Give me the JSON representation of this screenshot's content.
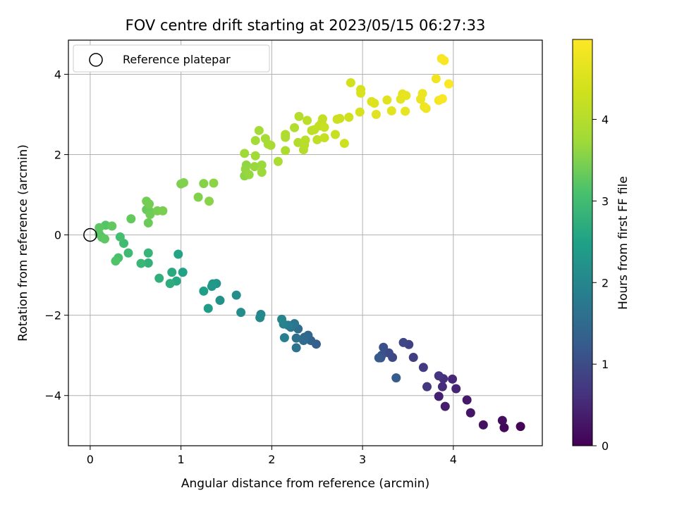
{
  "chart_data": {
    "type": "scatter",
    "title": "FOV centre drift starting at 2023/05/15 06:27:33",
    "xlabel": "Angular distance from reference (arcmin)",
    "ylabel": "Rotation from reference (arcmin)",
    "xlim": [
      -0.24,
      4.98
    ],
    "ylim": [
      -5.25,
      4.85
    ],
    "xticks": [
      0,
      1,
      2,
      3,
      4
    ],
    "yticks": [
      -4,
      -2,
      0,
      2,
      4
    ],
    "xtick_labels": [
      "0",
      "1",
      "2",
      "3",
      "4"
    ],
    "ytick_labels": [
      "−4",
      "−2",
      "0",
      "2",
      "4"
    ],
    "grid": true,
    "legend": {
      "placement": "top-left",
      "label": "Reference platepar",
      "marker": "open-circle"
    },
    "reference_point": {
      "x": 0,
      "y": 0
    },
    "colorbar": {
      "label": "Hours from first FF file",
      "colormap": "viridis",
      "range": [
        0,
        4.98
      ],
      "ticks": [
        0,
        1,
        2,
        3,
        4
      ],
      "tick_labels": [
        "0",
        "1",
        "2",
        "3",
        "4"
      ]
    },
    "points": [
      {
        "x": 4.74,
        "y": -4.77,
        "h": 0.05
      },
      {
        "x": 4.56,
        "y": -4.8,
        "h": 0.1
      },
      {
        "x": 4.54,
        "y": -4.62,
        "h": 0.15
      },
      {
        "x": 4.33,
        "y": -4.73,
        "h": 0.2
      },
      {
        "x": 4.19,
        "y": -4.43,
        "h": 0.25
      },
      {
        "x": 4.15,
        "y": -4.11,
        "h": 0.3
      },
      {
        "x": 3.91,
        "y": -4.27,
        "h": 0.35
      },
      {
        "x": 3.84,
        "y": -4.02,
        "h": 0.4
      },
      {
        "x": 4.03,
        "y": -3.83,
        "h": 0.45
      },
      {
        "x": 3.99,
        "y": -3.59,
        "h": 0.5
      },
      {
        "x": 3.88,
        "y": -3.78,
        "h": 0.55
      },
      {
        "x": 3.89,
        "y": -3.58,
        "h": 0.6
      },
      {
        "x": 3.84,
        "y": -3.51,
        "h": 0.65
      },
      {
        "x": 3.71,
        "y": -3.78,
        "h": 0.7
      },
      {
        "x": 3.67,
        "y": -3.3,
        "h": 0.75
      },
      {
        "x": 3.56,
        "y": -3.05,
        "h": 0.8
      },
      {
        "x": 3.51,
        "y": -2.73,
        "h": 0.85
      },
      {
        "x": 3.45,
        "y": -2.68,
        "h": 0.9
      },
      {
        "x": 3.33,
        "y": -3.05,
        "h": 0.95
      },
      {
        "x": 3.29,
        "y": -2.94,
        "h": 1.0
      },
      {
        "x": 3.23,
        "y": -2.8,
        "h": 1.05
      },
      {
        "x": 3.21,
        "y": -3.0,
        "h": 1.1
      },
      {
        "x": 3.2,
        "y": -3.06,
        "h": 1.15
      },
      {
        "x": 3.18,
        "y": -3.06,
        "h": 1.2
      },
      {
        "x": 3.37,
        "y": -3.56,
        "h": 1.25
      },
      {
        "x": 2.49,
        "y": -2.72,
        "h": 1.3
      },
      {
        "x": 2.43,
        "y": -2.63,
        "h": 1.35
      },
      {
        "x": 2.4,
        "y": -2.5,
        "h": 1.4
      },
      {
        "x": 2.36,
        "y": -2.55,
        "h": 1.45
      },
      {
        "x": 2.35,
        "y": -2.63,
        "h": 1.5
      },
      {
        "x": 2.29,
        "y": -2.34,
        "h": 1.55
      },
      {
        "x": 2.27,
        "y": -2.57,
        "h": 1.6
      },
      {
        "x": 2.27,
        "y": -2.81,
        "h": 1.65
      },
      {
        "x": 2.25,
        "y": -2.21,
        "h": 1.7
      },
      {
        "x": 2.21,
        "y": -2.3,
        "h": 1.75
      },
      {
        "x": 2.18,
        "y": -2.25,
        "h": 1.8
      },
      {
        "x": 2.14,
        "y": -2.56,
        "h": 1.85
      },
      {
        "x": 2.13,
        "y": -2.22,
        "h": 1.9
      },
      {
        "x": 2.11,
        "y": -2.1,
        "h": 1.95
      },
      {
        "x": 1.88,
        "y": -1.98,
        "h": 2.0
      },
      {
        "x": 1.87,
        "y": -2.06,
        "h": 2.05
      },
      {
        "x": 1.66,
        "y": -1.93,
        "h": 2.1
      },
      {
        "x": 1.61,
        "y": -1.5,
        "h": 2.15
      },
      {
        "x": 1.43,
        "y": -1.63,
        "h": 2.2
      },
      {
        "x": 1.39,
        "y": -1.21,
        "h": 2.25
      },
      {
        "x": 1.35,
        "y": -1.22,
        "h": 2.3
      },
      {
        "x": 1.34,
        "y": -1.28,
        "h": 2.35
      },
      {
        "x": 1.3,
        "y": -1.83,
        "h": 2.4
      },
      {
        "x": 1.25,
        "y": -1.4,
        "h": 2.45
      },
      {
        "x": 1.02,
        "y": -0.93,
        "h": 2.5
      },
      {
        "x": 0.97,
        "y": -0.48,
        "h": 2.55
      },
      {
        "x": 0.95,
        "y": -1.15,
        "h": 2.6
      },
      {
        "x": 0.9,
        "y": -0.93,
        "h": 2.65
      },
      {
        "x": 0.88,
        "y": -1.21,
        "h": 2.7
      },
      {
        "x": 0.76,
        "y": -1.08,
        "h": 2.75
      },
      {
        "x": 0.64,
        "y": -0.7,
        "h": 2.8
      },
      {
        "x": 0.64,
        "y": -0.45,
        "h": 2.85
      },
      {
        "x": 0.56,
        "y": -0.71,
        "h": 2.9
      },
      {
        "x": 0.42,
        "y": -0.45,
        "h": 2.95
      },
      {
        "x": 0.37,
        "y": -0.21,
        "h": 3.0
      },
      {
        "x": 0.33,
        "y": -0.05,
        "h": 3.05
      },
      {
        "x": 0.31,
        "y": -0.57,
        "h": 3.1
      },
      {
        "x": 0.28,
        "y": -0.65,
        "h": 3.15
      },
      {
        "x": 0.17,
        "y": 0.24,
        "h": 3.18
      },
      {
        "x": 0.13,
        "y": -0.06,
        "h": 3.2
      },
      {
        "x": 0.1,
        "y": 0.02,
        "h": 3.22
      },
      {
        "x": 0.1,
        "y": 0.18,
        "h": 3.24
      },
      {
        "x": 0.16,
        "y": -0.1,
        "h": 3.26
      },
      {
        "x": 0.24,
        "y": 0.22,
        "h": 3.28
      },
      {
        "x": 0.45,
        "y": 0.4,
        "h": 3.3
      },
      {
        "x": 0.62,
        "y": 0.63,
        "h": 3.32
      },
      {
        "x": 0.65,
        "y": 0.6,
        "h": 3.34
      },
      {
        "x": 0.64,
        "y": 0.3,
        "h": 3.36
      },
      {
        "x": 0.66,
        "y": 0.51,
        "h": 3.38
      },
      {
        "x": 0.62,
        "y": 0.84,
        "h": 3.4
      },
      {
        "x": 0.65,
        "y": 0.77,
        "h": 3.42
      },
      {
        "x": 0.74,
        "y": 0.6,
        "h": 3.44
      },
      {
        "x": 0.8,
        "y": 0.6,
        "h": 3.46
      },
      {
        "x": 1.0,
        "y": 1.27,
        "h": 3.48
      },
      {
        "x": 1.03,
        "y": 1.3,
        "h": 3.5
      },
      {
        "x": 1.19,
        "y": 0.94,
        "h": 3.52
      },
      {
        "x": 1.25,
        "y": 1.28,
        "h": 3.54
      },
      {
        "x": 1.31,
        "y": 0.84,
        "h": 3.56
      },
      {
        "x": 1.36,
        "y": 1.29,
        "h": 3.58
      },
      {
        "x": 1.7,
        "y": 1.47,
        "h": 3.6
      },
      {
        "x": 1.72,
        "y": 1.74,
        "h": 3.62
      },
      {
        "x": 1.71,
        "y": 1.64,
        "h": 3.64
      },
      {
        "x": 1.75,
        "y": 1.5,
        "h": 3.66
      },
      {
        "x": 1.81,
        "y": 1.7,
        "h": 3.68
      },
      {
        "x": 1.89,
        "y": 1.74,
        "h": 3.7
      },
      {
        "x": 1.89,
        "y": 1.56,
        "h": 3.72
      },
      {
        "x": 1.7,
        "y": 2.03,
        "h": 3.74
      },
      {
        "x": 1.82,
        "y": 1.97,
        "h": 3.76
      },
      {
        "x": 1.82,
        "y": 2.35,
        "h": 3.78
      },
      {
        "x": 1.86,
        "y": 2.6,
        "h": 3.8
      },
      {
        "x": 1.93,
        "y": 2.4,
        "h": 3.82
      },
      {
        "x": 1.96,
        "y": 2.26,
        "h": 3.84
      },
      {
        "x": 1.99,
        "y": 2.23,
        "h": 3.86
      },
      {
        "x": 2.07,
        "y": 1.83,
        "h": 3.88
      },
      {
        "x": 2.15,
        "y": 2.1,
        "h": 3.9
      },
      {
        "x": 2.15,
        "y": 2.43,
        "h": 3.92
      },
      {
        "x": 2.15,
        "y": 2.5,
        "h": 3.94
      },
      {
        "x": 2.25,
        "y": 2.67,
        "h": 3.96
      },
      {
        "x": 2.29,
        "y": 2.3,
        "h": 3.98
      },
      {
        "x": 2.3,
        "y": 2.95,
        "h": 4.0
      },
      {
        "x": 2.35,
        "y": 2.12,
        "h": 4.02
      },
      {
        "x": 2.36,
        "y": 2.24,
        "h": 4.04
      },
      {
        "x": 2.37,
        "y": 2.36,
        "h": 4.06
      },
      {
        "x": 2.39,
        "y": 2.85,
        "h": 4.08
      },
      {
        "x": 2.44,
        "y": 2.6,
        "h": 4.1
      },
      {
        "x": 2.47,
        "y": 2.62,
        "h": 4.12
      },
      {
        "x": 2.5,
        "y": 2.37,
        "h": 4.14
      },
      {
        "x": 2.52,
        "y": 2.71,
        "h": 4.16
      },
      {
        "x": 2.55,
        "y": 2.79,
        "h": 4.18
      },
      {
        "x": 2.56,
        "y": 2.89,
        "h": 4.2
      },
      {
        "x": 2.58,
        "y": 2.42,
        "h": 4.22
      },
      {
        "x": 2.58,
        "y": 2.68,
        "h": 4.24
      },
      {
        "x": 2.7,
        "y": 2.5,
        "h": 4.26
      },
      {
        "x": 2.72,
        "y": 2.88,
        "h": 4.28
      },
      {
        "x": 2.75,
        "y": 2.9,
        "h": 4.3
      },
      {
        "x": 2.8,
        "y": 2.28,
        "h": 4.32
      },
      {
        "x": 2.85,
        "y": 2.93,
        "h": 4.34
      },
      {
        "x": 2.87,
        "y": 3.79,
        "h": 4.38
      },
      {
        "x": 2.97,
        "y": 3.06,
        "h": 4.42
      },
      {
        "x": 2.98,
        "y": 3.62,
        "h": 4.46
      },
      {
        "x": 2.98,
        "y": 3.53,
        "h": 4.5
      },
      {
        "x": 3.1,
        "y": 3.32,
        "h": 4.52
      },
      {
        "x": 3.13,
        "y": 3.28,
        "h": 4.55
      },
      {
        "x": 3.15,
        "y": 3.0,
        "h": 4.58
      },
      {
        "x": 3.27,
        "y": 3.36,
        "h": 4.6
      },
      {
        "x": 3.32,
        "y": 3.09,
        "h": 4.62
      },
      {
        "x": 3.42,
        "y": 3.38,
        "h": 4.64
      },
      {
        "x": 3.44,
        "y": 3.51,
        "h": 4.66
      },
      {
        "x": 3.47,
        "y": 3.08,
        "h": 4.68
      },
      {
        "x": 3.48,
        "y": 3.47,
        "h": 4.7
      },
      {
        "x": 3.64,
        "y": 3.38,
        "h": 4.72
      },
      {
        "x": 3.66,
        "y": 3.52,
        "h": 4.74
      },
      {
        "x": 3.68,
        "y": 3.19,
        "h": 4.76
      },
      {
        "x": 3.7,
        "y": 3.15,
        "h": 4.78
      },
      {
        "x": 3.81,
        "y": 3.89,
        "h": 4.82
      },
      {
        "x": 3.84,
        "y": 3.35,
        "h": 4.86
      },
      {
        "x": 3.87,
        "y": 4.39,
        "h": 4.9
      },
      {
        "x": 3.88,
        "y": 3.39,
        "h": 4.92
      },
      {
        "x": 3.9,
        "y": 4.34,
        "h": 4.94
      },
      {
        "x": 3.95,
        "y": 3.76,
        "h": 4.96
      }
    ]
  }
}
